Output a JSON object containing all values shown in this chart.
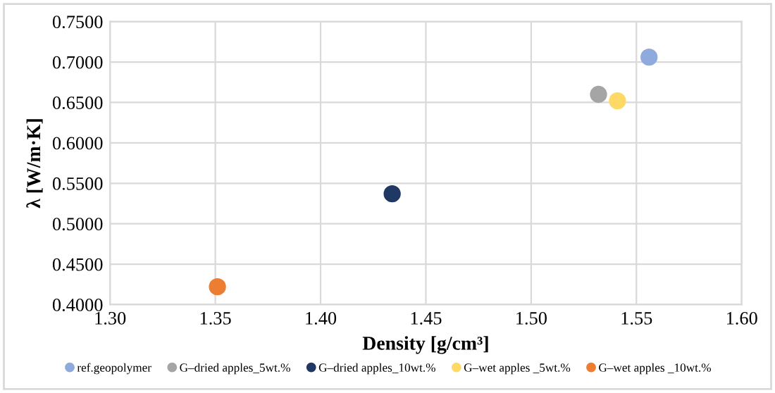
{
  "chart_data": {
    "type": "scatter",
    "xlabel": "Density [g/cm³]",
    "ylabel": "λ [W/m·K]",
    "series": [
      {
        "name": "ref.geopolymer",
        "color": "#8faadc",
        "x": [
          1.556
        ],
        "values": [
          0.706
        ]
      },
      {
        "name": "G–dried apples_5wt.%",
        "color": "#a5a5a5",
        "x": [
          1.532
        ],
        "values": [
          0.66
        ]
      },
      {
        "name": "G–dried apples_10wt.%",
        "color": "#203864",
        "x": [
          1.434
        ],
        "values": [
          0.537
        ]
      },
      {
        "name": "G–wet apples _5wt.%",
        "color": "#ffd966",
        "x": [
          1.541
        ],
        "values": [
          0.652
        ]
      },
      {
        "name": "G–wet apples _10wt.%",
        "color": "#ed7d31",
        "x": [
          1.351
        ],
        "values": [
          0.422
        ]
      }
    ],
    "xlim": [
      1.3,
      1.6
    ],
    "xticks": [
      {
        "value": 1.3,
        "label": "1.30"
      },
      {
        "value": 1.35,
        "label": "1.35"
      },
      {
        "value": 1.4,
        "label": "1.40"
      },
      {
        "value": 1.45,
        "label": "1.45"
      },
      {
        "value": 1.5,
        "label": "1.50"
      },
      {
        "value": 1.55,
        "label": "1.55"
      },
      {
        "value": 1.6,
        "label": "1.60"
      }
    ],
    "ylim": [
      0.4,
      0.75
    ],
    "yticks": [
      {
        "value": 0.4,
        "label": "0.4000"
      },
      {
        "value": 0.45,
        "label": "0.4500"
      },
      {
        "value": 0.5,
        "label": "0.5000"
      },
      {
        "value": 0.55,
        "label": "0.5500"
      },
      {
        "value": 0.6,
        "label": "0.6000"
      },
      {
        "value": 0.65,
        "label": "0.6500"
      },
      {
        "value": 0.7,
        "label": "0.7000"
      },
      {
        "value": 0.75,
        "label": "0.7500"
      }
    ],
    "grid": true,
    "legend": "bottom",
    "marker": "circle"
  }
}
